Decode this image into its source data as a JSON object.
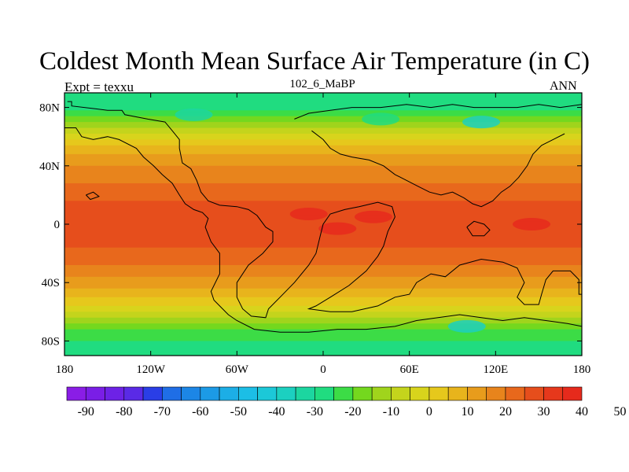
{
  "title": "Coldest Month Mean Surface Air Temperature (in C)",
  "left_label": "Expt = texxu",
  "center_label": "102_6_MaBP",
  "right_label": "ANN",
  "x_ticks": [
    "180",
    "120W",
    "60W",
    "0",
    "60E",
    "120E",
    "180"
  ],
  "y_ticks": [
    "80N",
    "40N",
    "0",
    "40S",
    "80S"
  ],
  "colorbar": {
    "labels": [
      "-90",
      "-80",
      "-70",
      "-60",
      "-50",
      "-40",
      "-30",
      "-20",
      "-10",
      "0",
      "10",
      "20",
      "30",
      "40",
      "50"
    ],
    "colors": [
      "#8a1de6",
      "#7a1ee6",
      "#6d22e6",
      "#5a2ae6",
      "#2a3ee6",
      "#1f6ee6",
      "#1c86e6",
      "#1c9ae6",
      "#1caee6",
      "#1cbee6",
      "#1cc8d8",
      "#1cd0c0",
      "#1cd6a0",
      "#20dc80",
      "#3cdc46",
      "#74d81e",
      "#a0d41c",
      "#c4d41c",
      "#d8d41c",
      "#e6c81c",
      "#e8b41c",
      "#e89c1c",
      "#e8841c",
      "#e8681c",
      "#e64e1c",
      "#e6381c",
      "#e62a1c"
    ]
  },
  "chart_data": {
    "type": "filled-contour-map",
    "title": "Coldest Month Mean Surface Air Temperature (in C)",
    "units": "C",
    "projection": "cylindrical-equidistant",
    "xlim": [
      -180,
      180
    ],
    "ylim": [
      -90,
      90
    ],
    "x_tick_values": [
      -180,
      -120,
      -60,
      0,
      60,
      120,
      180
    ],
    "y_tick_values": [
      80,
      40,
      0,
      -40,
      -80
    ],
    "contour_levels": [
      -90,
      -80,
      -70,
      -60,
      -50,
      -40,
      -30,
      -20,
      -10,
      0,
      10,
      20,
      30,
      40,
      50
    ],
    "latitude_profile": [
      {
        "lat": 90,
        "temp": -30
      },
      {
        "lat": 80,
        "temp": -27
      },
      {
        "lat": 72,
        "temp": -18
      },
      {
        "lat": 64,
        "temp": -8
      },
      {
        "lat": 56,
        "temp": 2
      },
      {
        "lat": 48,
        "temp": 10
      },
      {
        "lat": 40,
        "temp": 15
      },
      {
        "lat": 30,
        "temp": 19
      },
      {
        "lat": 20,
        "temp": 23
      },
      {
        "lat": 10,
        "temp": 27
      },
      {
        "lat": 0,
        "temp": 29
      },
      {
        "lat": -10,
        "temp": 27
      },
      {
        "lat": -20,
        "temp": 23
      },
      {
        "lat": -30,
        "temp": 19
      },
      {
        "lat": -40,
        "temp": 13
      },
      {
        "lat": -50,
        "temp": 5
      },
      {
        "lat": -58,
        "temp": -3
      },
      {
        "lat": -66,
        "temp": -14
      },
      {
        "lat": -74,
        "temp": -22
      },
      {
        "lat": -82,
        "temp": -26
      },
      {
        "lat": -90,
        "temp": -28
      }
    ],
    "warm_anomalies": [
      {
        "lon": 145,
        "lat": 0,
        "temp": 38
      },
      {
        "lon": 10,
        "lat": -3,
        "temp": 38
      },
      {
        "lon": -10,
        "lat": 7,
        "temp": 36
      },
      {
        "lon": 35,
        "lat": 5,
        "temp": 35
      }
    ],
    "cold_anomalies": [
      {
        "lon": 110,
        "lat": 70,
        "temp": -38
      },
      {
        "lon": 40,
        "lat": 72,
        "temp": -30
      },
      {
        "lon": -90,
        "lat": 75,
        "temp": -32
      },
      {
        "lon": 100,
        "lat": -70,
        "temp": -38
      }
    ],
    "coastlines": [
      [
        [
          -178,
          84
        ],
        [
          -175,
          84
        ],
        [
          -175,
          81
        ],
        [
          -158,
          79
        ],
        [
          -150,
          78
        ],
        [
          -140,
          78
        ],
        [
          -138,
          75
        ],
        [
          -122,
          72
        ],
        [
          -110,
          70
        ],
        [
          -105,
          64
        ],
        [
          -100,
          58
        ],
        [
          -100,
          52
        ],
        [
          -98,
          42
        ],
        [
          -92,
          38
        ],
        [
          -88,
          30
        ],
        [
          -85,
          22
        ],
        [
          -80,
          16
        ],
        [
          -72,
          13
        ],
        [
          -60,
          12
        ],
        [
          -52,
          10
        ],
        [
          -46,
          6
        ],
        [
          -40,
          -2
        ],
        [
          -35,
          -5
        ],
        [
          -35,
          -12
        ],
        [
          -42,
          -20
        ],
        [
          -52,
          -28
        ],
        [
          -60,
          -40
        ],
        [
          -60,
          -50
        ],
        [
          -56,
          -58
        ],
        [
          -50,
          -63
        ],
        [
          -40,
          -64
        ],
        [
          -38,
          -58
        ],
        [
          -30,
          -50
        ],
        [
          -20,
          -40
        ],
        [
          -10,
          -28
        ],
        [
          -5,
          -20
        ],
        [
          -2,
          -8
        ],
        [
          0,
          0
        ],
        [
          5,
          7
        ],
        [
          15,
          10
        ],
        [
          25,
          12
        ],
        [
          38,
          15
        ],
        [
          48,
          12
        ],
        [
          50,
          5
        ],
        [
          45,
          -5
        ],
        [
          42,
          -15
        ],
        [
          38,
          -22
        ],
        [
          30,
          -32
        ],
        [
          18,
          -42
        ],
        [
          5,
          -50
        ],
        [
          -5,
          -56
        ],
        [
          -10,
          -58
        ],
        [
          5,
          -60
        ],
        [
          20,
          -60
        ],
        [
          38,
          -56
        ],
        [
          50,
          -50
        ],
        [
          60,
          -48
        ],
        [
          65,
          -40
        ],
        [
          75,
          -34
        ],
        [
          85,
          -36
        ],
        [
          95,
          -28
        ],
        [
          110,
          -24
        ],
        [
          125,
          -26
        ],
        [
          135,
          -30
        ],
        [
          140,
          -40
        ],
        [
          135,
          -50
        ],
        [
          140,
          -55
        ],
        [
          150,
          -55
        ],
        [
          152,
          -48
        ],
        [
          155,
          -38
        ],
        [
          160,
          -32
        ],
        [
          172,
          -32
        ],
        [
          178,
          -38
        ],
        [
          178,
          -48
        ],
        [
          180,
          -48
        ]
      ],
      [
        [
          -180,
          66
        ],
        [
          -172,
          66
        ],
        [
          -168,
          60
        ],
        [
          -160,
          58
        ],
        [
          -150,
          60
        ],
        [
          -142,
          58
        ],
        [
          -130,
          52
        ],
        [
          -125,
          46
        ],
        [
          -118,
          40
        ],
        [
          -112,
          34
        ],
        [
          -105,
          28
        ],
        [
          -100,
          20
        ],
        [
          -96,
          14
        ],
        [
          -90,
          10
        ],
        [
          -84,
          8
        ],
        [
          -80,
          4
        ],
        [
          -82,
          -2
        ],
        [
          -78,
          -12
        ],
        [
          -72,
          -20
        ],
        [
          -72,
          -34
        ],
        [
          -78,
          -46
        ],
        [
          -76,
          -52
        ],
        [
          -72,
          -56
        ],
        [
          -66,
          -62
        ],
        [
          -60,
          -66
        ],
        [
          -48,
          -72
        ],
        [
          -30,
          -74
        ],
        [
          -10,
          -74
        ],
        [
          10,
          -72
        ],
        [
          30,
          -72
        ],
        [
          50,
          -70
        ],
        [
          65,
          -66
        ],
        [
          80,
          -64
        ],
        [
          95,
          -62
        ],
        [
          110,
          -64
        ],
        [
          125,
          -66
        ],
        [
          140,
          -64
        ],
        [
          155,
          -66
        ],
        [
          170,
          -68
        ],
        [
          180,
          -70
        ]
      ],
      [
        [
          -20,
          72
        ],
        [
          -10,
          76
        ],
        [
          5,
          78
        ],
        [
          20,
          80
        ],
        [
          40,
          80
        ],
        [
          58,
          82
        ],
        [
          75,
          80
        ],
        [
          90,
          82
        ],
        [
          105,
          80
        ],
        [
          120,
          80
        ],
        [
          135,
          80
        ],
        [
          150,
          82
        ],
        [
          165,
          80
        ],
        [
          180,
          82
        ]
      ],
      [
        [
          -8,
          64
        ],
        [
          0,
          58
        ],
        [
          5,
          52
        ],
        [
          12,
          48
        ],
        [
          20,
          46
        ],
        [
          32,
          44
        ],
        [
          42,
          40
        ],
        [
          50,
          34
        ],
        [
          58,
          30
        ],
        [
          66,
          26
        ],
        [
          74,
          22
        ],
        [
          82,
          20
        ],
        [
          90,
          22
        ],
        [
          98,
          18
        ],
        [
          104,
          14
        ],
        [
          110,
          12
        ],
        [
          118,
          16
        ],
        [
          124,
          22
        ],
        [
          130,
          26
        ],
        [
          136,
          32
        ],
        [
          142,
          40
        ],
        [
          146,
          48
        ],
        [
          152,
          54
        ],
        [
          160,
          58
        ],
        [
          168,
          62
        ]
      ],
      [
        [
          100,
          -2
        ],
        [
          105,
          2
        ],
        [
          112,
          0
        ],
        [
          116,
          -4
        ],
        [
          112,
          -8
        ],
        [
          104,
          -8
        ],
        [
          100,
          -2
        ]
      ],
      [
        [
          -165,
          20
        ],
        [
          -160,
          22
        ],
        [
          -156,
          19
        ],
        [
          -162,
          17
        ],
        [
          -165,
          20
        ]
      ]
    ]
  }
}
